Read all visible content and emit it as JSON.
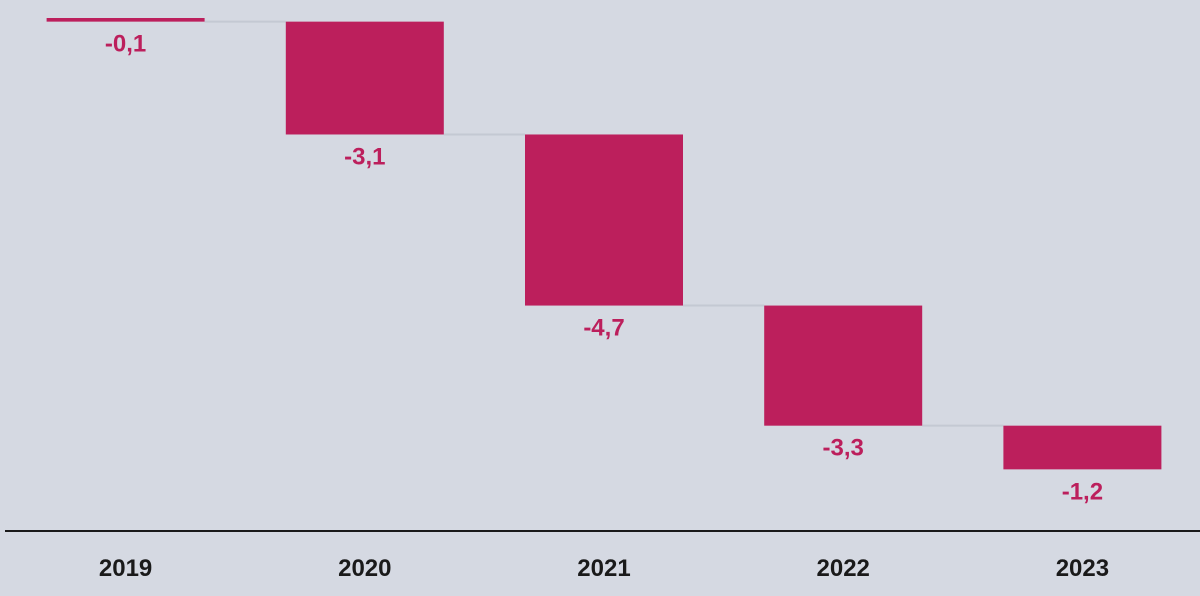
{
  "chart_data": {
    "type": "bar",
    "subtype": "waterfall",
    "categories": [
      "2019",
      "2020",
      "2021",
      "2022",
      "2023"
    ],
    "values": [
      -0.1,
      -3.1,
      -4.7,
      -3.3,
      -1.2
    ],
    "value_labels": [
      "-0,1",
      "-3,1",
      "-4,7",
      "-3,3",
      "-1,2"
    ],
    "title": "",
    "xlabel": "",
    "ylabel": "",
    "grid": false,
    "legend": "none",
    "colors": {
      "bar": "#bc1f5c",
      "label": "#bc1f5c",
      "axis": "#1a1a1a",
      "connector": "#c4c9d3",
      "background": "#d5d9e2"
    }
  }
}
